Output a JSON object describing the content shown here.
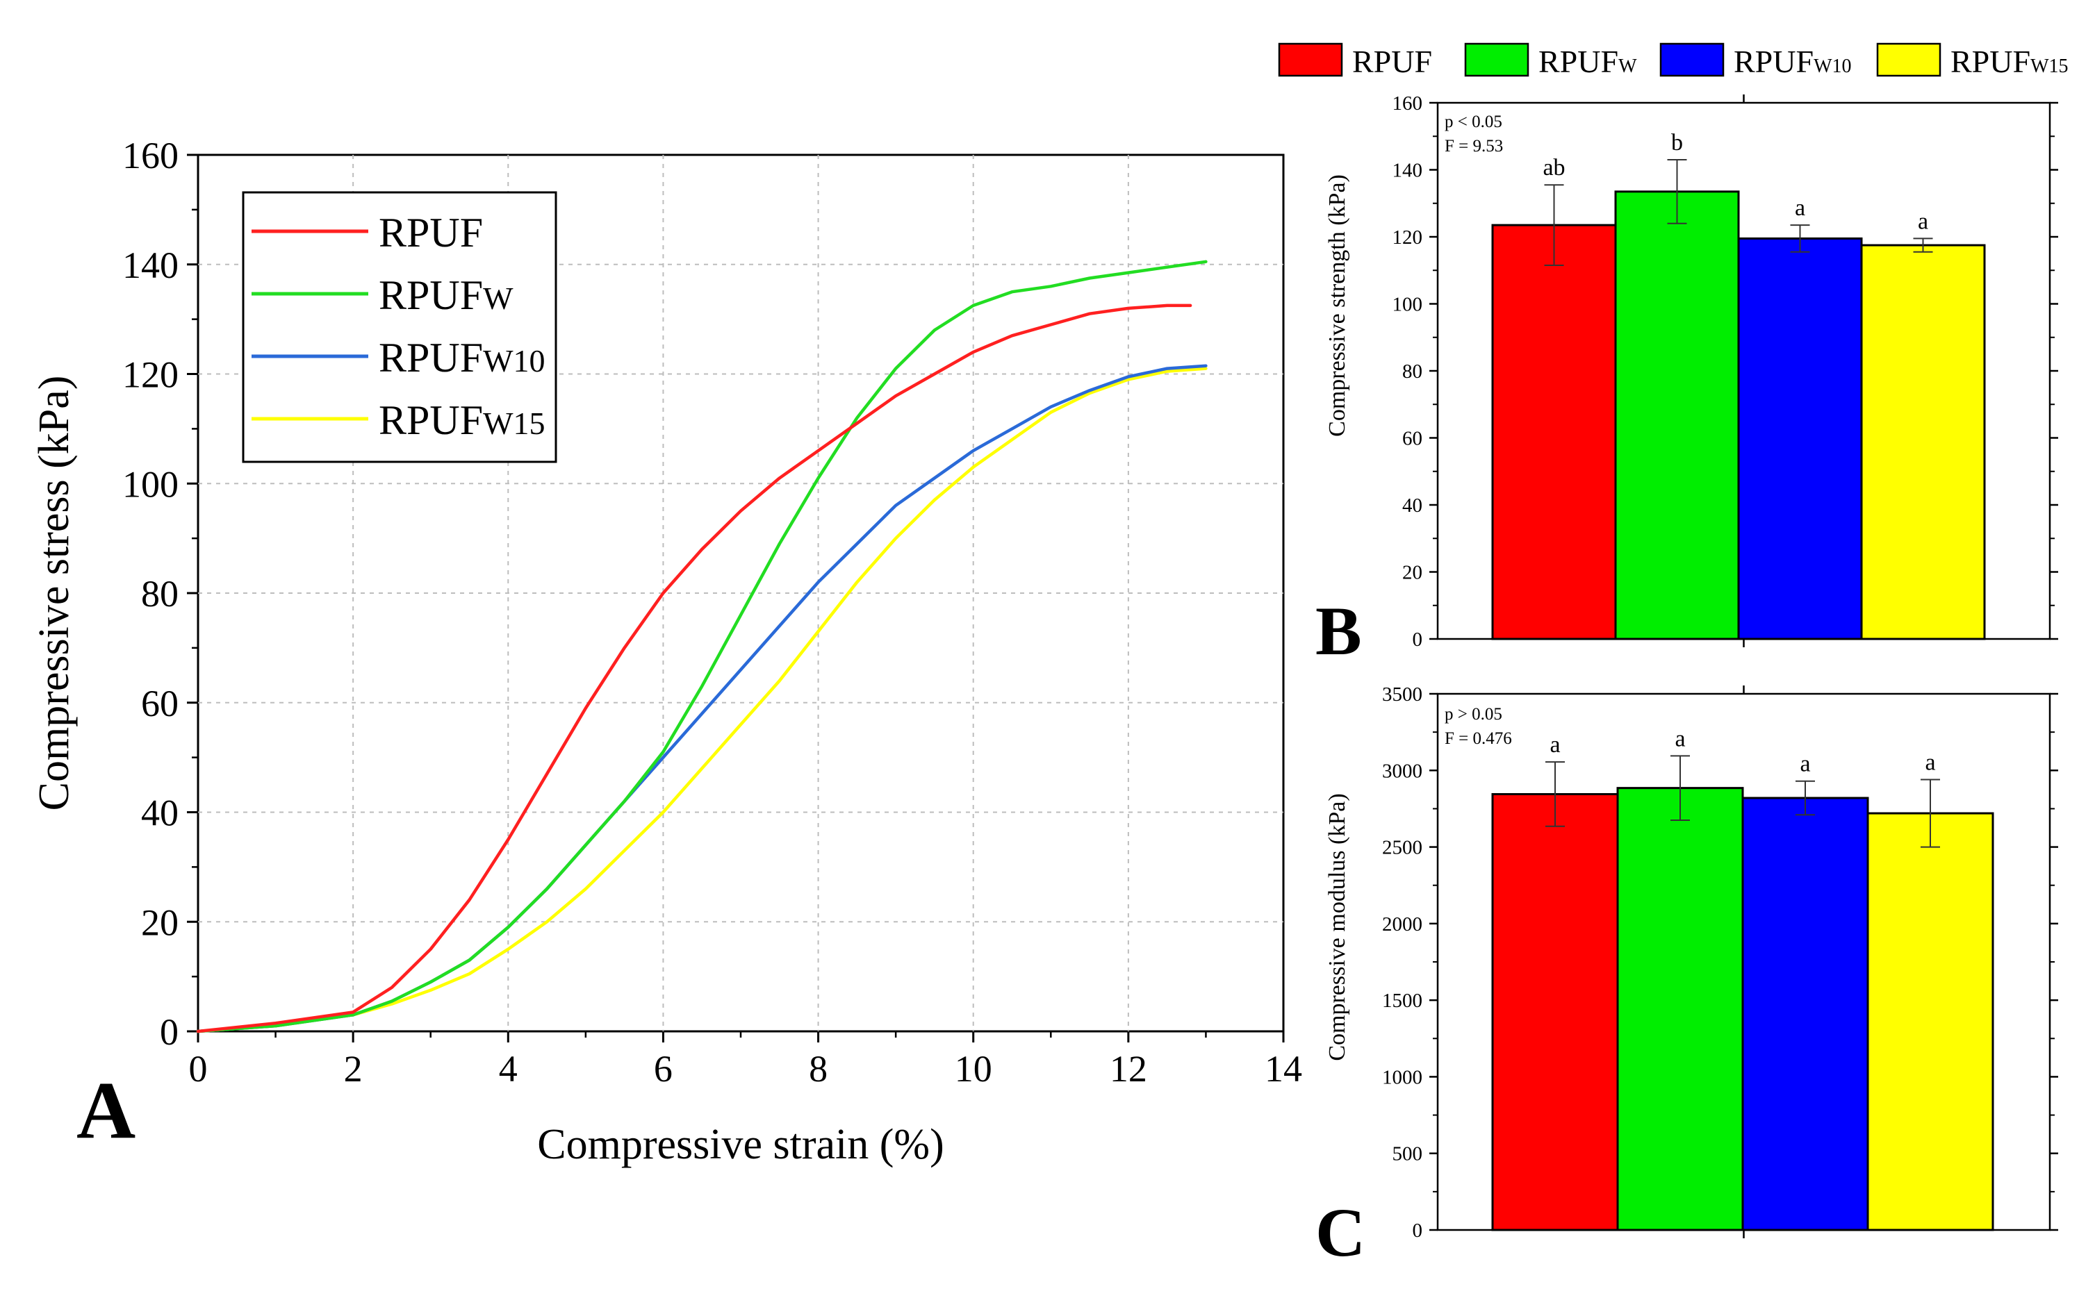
{
  "colors": {
    "rpuf": "#ff0000",
    "rpufw": "#00ee00",
    "rpufw10": "#0000ff",
    "rpufw15": "#ffff00",
    "line_blue": "#2a6ad8",
    "line_yellow": "#ffff00",
    "line_green": "#22dd22",
    "line_red": "#ff2020"
  },
  "top_legend": [
    {
      "base": "RPUF",
      "sub": "",
      "color_key": "rpuf"
    },
    {
      "base": "RPUF",
      "sub": "W",
      "color_key": "rpufw"
    },
    {
      "base": "RPUF",
      "sub": "W10",
      "color_key": "rpufw10"
    },
    {
      "base": "RPUF",
      "sub": "W15",
      "color_key": "rpufw15"
    }
  ],
  "chart_data": [
    {
      "id": "A",
      "type": "line",
      "panel_label": "A",
      "xlabel": "Compressive strain (%)",
      "ylabel": "Compressive stress (kPa)",
      "xlim": [
        0,
        14
      ],
      "ylim": [
        0,
        160
      ],
      "xticks": [
        "0",
        "2",
        "4",
        "6",
        "8",
        "10",
        "12",
        "14"
      ],
      "yticks": [
        "0",
        "20",
        "40",
        "60",
        "80",
        "100",
        "120",
        "140",
        "160"
      ],
      "grid": true,
      "legend_position": "top-left",
      "series": [
        {
          "name": "RPUF",
          "base": "RPUF",
          "sub": "",
          "color_key": "line_red",
          "x": [
            0,
            1,
            2,
            2.5,
            3,
            3.5,
            4,
            4.5,
            5,
            5.5,
            6,
            6.5,
            7,
            7.5,
            8,
            8.5,
            9,
            9.5,
            10,
            10.5,
            11,
            11.5,
            12,
            12.5,
            12.8
          ],
          "y": [
            0,
            1.5,
            3.5,
            8,
            15,
            24,
            35,
            47,
            59,
            70,
            80,
            88,
            95,
            101,
            106,
            111,
            116,
            120,
            124,
            127,
            129,
            131,
            132,
            132.5,
            132.5
          ]
        },
        {
          "name": "RPUFw",
          "base": "RPUF",
          "sub": "W",
          "color_key": "line_green",
          "x": [
            0,
            1,
            2,
            2.5,
            3,
            3.5,
            4,
            4.5,
            5,
            5.5,
            6,
            6.5,
            7,
            7.5,
            8,
            8.5,
            9,
            9.5,
            10,
            10.5,
            11,
            11.5,
            12,
            12.5,
            13
          ],
          "y": [
            0,
            1,
            3,
            5.5,
            9,
            13,
            19,
            26,
            34,
            42,
            51,
            63,
            76,
            89,
            101,
            112,
            121,
            128,
            132.5,
            135,
            136,
            137.5,
            138.5,
            139.5,
            140.5
          ]
        },
        {
          "name": "RPUFw10",
          "base": "RPUF",
          "sub": "W10",
          "color_key": "line_blue",
          "x": [
            0,
            1,
            2,
            2.5,
            3,
            3.5,
            4,
            4.5,
            5,
            5.5,
            6,
            6.5,
            7,
            7.5,
            8,
            8.5,
            9,
            9.5,
            10,
            10.5,
            11,
            11.5,
            12,
            12.5,
            13
          ],
          "y": [
            0,
            1,
            3,
            5.5,
            9,
            13,
            19,
            26,
            34,
            42,
            50,
            58,
            66,
            74,
            82,
            89,
            96,
            101,
            106,
            110,
            114,
            117,
            119.5,
            121,
            121.5
          ]
        },
        {
          "name": "RPUFw15",
          "base": "RPUF",
          "sub": "W15",
          "color_key": "line_yellow",
          "x": [
            0,
            1,
            2,
            2.5,
            3,
            3.5,
            4,
            4.5,
            5,
            5.5,
            6,
            6.5,
            7,
            7.5,
            8,
            8.5,
            9,
            9.5,
            10,
            10.5,
            11,
            11.5,
            12,
            12.5,
            13
          ],
          "y": [
            0,
            1,
            3,
            5,
            7.5,
            10.5,
            15,
            20,
            26,
            33,
            40,
            48,
            56,
            64,
            73,
            82,
            90,
            97,
            103,
            108,
            113,
            116.5,
            119,
            120.5,
            121
          ]
        }
      ]
    },
    {
      "id": "B",
      "type": "bar",
      "panel_label": "B",
      "ylabel": "Compressive strength (kPa)",
      "ylim": [
        0,
        160
      ],
      "yticks": [
        "0",
        "20",
        "40",
        "60",
        "80",
        "100",
        "120",
        "140",
        "160"
      ],
      "stats": [
        "p < 0.05",
        "F = 9.53"
      ],
      "categories": [
        "RPUF",
        "RPUFw",
        "RPUFw10",
        "RPUFw15"
      ],
      "color_keys": [
        "rpuf",
        "rpufw",
        "rpufw10",
        "rpufw15"
      ],
      "values": [
        123.5,
        133.5,
        119.5,
        117.5
      ],
      "errors": [
        12,
        9.5,
        4,
        2
      ],
      "significance": [
        "ab",
        "b",
        "a",
        "a"
      ]
    },
    {
      "id": "C",
      "type": "bar",
      "panel_label": "C",
      "ylabel": "Compressive modulus (kPa)",
      "ylim": [
        0,
        3500
      ],
      "yticks": [
        "0",
        "500",
        "1000",
        "1500",
        "2000",
        "2500",
        "3000",
        "3500"
      ],
      "stats": [
        "p > 0.05",
        "F = 0.476"
      ],
      "categories": [
        "RPUF",
        "RPUFw",
        "RPUFw10",
        "RPUFw15"
      ],
      "color_keys": [
        "rpuf",
        "rpufw",
        "rpufw10",
        "rpufw15"
      ],
      "values": [
        2845,
        2885,
        2820,
        2720
      ],
      "errors": [
        210,
        210,
        110,
        220
      ],
      "significance": [
        "a",
        "a",
        "a",
        "a"
      ]
    }
  ]
}
